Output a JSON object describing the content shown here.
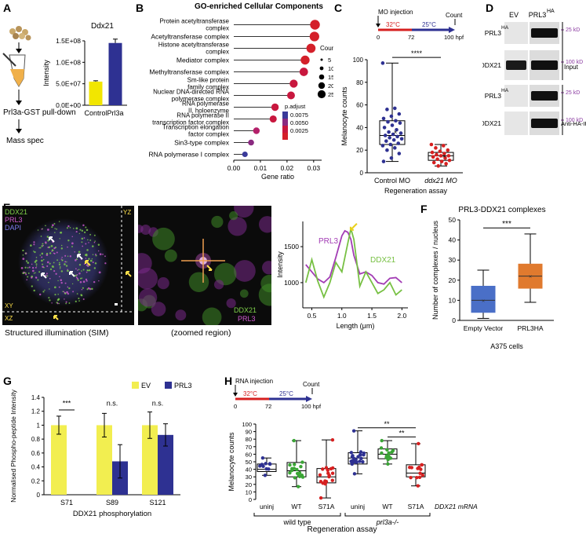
{
  "panels": {
    "A": {
      "letter": "A",
      "workflow": [
        "Prl3a-GST pull-down",
        "Mass spec"
      ],
      "chart_data": {
        "type": "bar",
        "title": "Ddx21",
        "ylabel": "Intensity",
        "categories": [
          "Control",
          "Prl3a"
        ],
        "values": [
          55000000,
          145000000
        ],
        "errors": [
          2000000,
          9000000
        ],
        "yticks": [
          "0.0E+00",
          "5.0E+07",
          "1.0E+08",
          "1.5E+08"
        ],
        "ylim": [
          0,
          150000000
        ],
        "colors": [
          "#f2e600",
          "#2e3192"
        ]
      }
    },
    "B": {
      "letter": "B",
      "chart_data": {
        "type": "scatter",
        "title": "GO-enriched Cellular Components",
        "xlabel": "Gene ratio",
        "xticks": [
          "0.00",
          "0.01",
          "0.02",
          "0.03"
        ],
        "xlim": [
          0,
          0.033
        ],
        "categories": [
          "Protein acetyltransferase complex",
          "Acetyltransferase complex",
          "Histone acetyltransferase complex",
          "Mediator complex",
          "Methyltransferase complex",
          "Sm-like protein family complex",
          "Nuclear DNA-directed RNA polymerase complex",
          "RNA polymerase II, holoenzyme",
          "RNA polymerase II transcription factor complex",
          "Transcription elongation factor complex",
          "Sin3-type complex",
          "RNA polymerase I complex"
        ],
        "x": [
          0.0305,
          0.0303,
          0.029,
          0.0268,
          0.0263,
          0.0225,
          0.0215,
          0.0155,
          0.0148,
          0.0085,
          0.0065,
          0.0042
        ],
        "count": [
          22,
          21,
          18,
          17,
          14,
          12,
          11,
          9,
          8,
          6,
          4,
          3
        ],
        "p_adjust": [
          0.0005,
          0.0005,
          0.0006,
          0.0006,
          0.0008,
          0.0009,
          0.001,
          0.0012,
          0.0014,
          0.0025,
          0.004,
          0.008
        ],
        "size_legend": {
          "title": "Count",
          "values": [
            "5",
            "10",
            "15",
            "20",
            "25"
          ]
        },
        "color_legend": {
          "title": "p.adjust",
          "values": [
            "0.0075",
            "0.0050",
            "0.0025"
          ]
        }
      }
    },
    "C": {
      "letter": "C",
      "timeline": {
        "injection": "MO injection",
        "t32": "32°C",
        "t25": "25°C",
        "count": "Count",
        "x0": "0",
        "x72": "72",
        "x100": "100 hpf"
      },
      "chart_data": {
        "type": "box",
        "ylabel": "Melanocyte counts",
        "xlabel": "Regeneration assay",
        "categories": [
          "Control MO",
          "ddx21 MO"
        ],
        "yticks": [
          "0",
          "20",
          "40",
          "60",
          "80",
          "100"
        ],
        "ylim": [
          0,
          100
        ],
        "boxes": [
          {
            "min": 10,
            "q1": 25,
            "median": 33,
            "q3": 46,
            "max": 97,
            "mean": 36,
            "color": "#2e3192"
          },
          {
            "min": 6,
            "q1": 11,
            "median": 15,
            "q3": 18,
            "max": 25,
            "mean": 15,
            "color": "#d62020"
          }
        ],
        "points": [
          [
            97,
            57,
            56,
            52,
            50,
            48,
            46,
            45,
            44,
            42,
            40,
            38,
            36,
            35,
            34,
            33,
            32,
            31,
            30,
            29,
            28,
            26,
            25,
            24,
            22,
            20,
            17,
            13,
            10
          ],
          [
            25,
            24,
            22,
            20,
            19,
            18,
            17,
            16,
            15,
            15,
            14,
            13,
            12,
            11,
            10,
            9,
            8,
            6
          ]
        ],
        "significance": "****"
      }
    },
    "D": {
      "letter": "D",
      "lanes": [
        "EV",
        "PRL3"
      ],
      "lane_sup": "HA",
      "rows": [
        "PRL3",
        "DDX21",
        "PRL3",
        "DDX21"
      ],
      "row_sup": "HA",
      "markers": [
        "25 kD",
        "100 kD",
        "25 kD",
        "100 kD"
      ],
      "groups": [
        "Input",
        "Anti-HA-IP"
      ]
    },
    "E": {
      "letter": "E",
      "sim_labels": {
        "ch1": "DDX21",
        "ch2": "PRL3",
        "ch3": "DAPI",
        "yz": "YZ",
        "xy": "XY",
        "xz": "XZ"
      },
      "sim_caption": "Structured illumination (SIM)",
      "zoom_labels": {
        "ch1": "DDX21",
        "ch2": "PRL3"
      },
      "zoom_caption": "(zoomed region)",
      "chart_data": {
        "type": "line",
        "xlabel": "Length (μm)",
        "ylabel": "Intensity",
        "xticks": [
          "0.5",
          "1.0",
          "1.5",
          "2.0"
        ],
        "yticks": [
          "1000",
          "1500"
        ],
        "xlim": [
          0.35,
          2.1
        ],
        "ylim": [
          650,
          1850
        ],
        "series": [
          {
            "name": "PRL3",
            "color": "#a23cb4",
            "x": [
              0.4,
              0.5,
              0.6,
              0.7,
              0.8,
              0.9,
              1.0,
              1.05,
              1.1,
              1.15,
              1.2,
              1.3,
              1.4,
              1.5,
              1.6,
              1.7,
              1.8,
              1.9,
              2.0
            ],
            "y": [
              1250,
              1150,
              1050,
              1000,
              1080,
              1350,
              1650,
              1720,
              1700,
              1600,
              1380,
              1120,
              1150,
              1100,
              1000,
              980,
              1060,
              1070,
              1000
            ]
          },
          {
            "name": "DDX21",
            "color": "#77c043",
            "x": [
              0.4,
              0.5,
              0.6,
              0.7,
              0.8,
              0.9,
              1.0,
              1.1,
              1.15,
              1.2,
              1.3,
              1.4,
              1.5,
              1.6,
              1.7,
              1.8,
              1.9,
              2.0
            ],
            "y": [
              1000,
              1320,
              1020,
              800,
              1000,
              1280,
              1150,
              1550,
              1750,
              1600,
              950,
              1150,
              1000,
              850,
              900,
              1000,
              830,
              900
            ]
          }
        ]
      }
    },
    "F": {
      "letter": "F",
      "chart_data": {
        "type": "box",
        "title": "PRL3-DDX21 complexes",
        "ylabel": "Number of complexes / nucleus",
        "xlabel": "A375 cells",
        "categories": [
          "Empty Vector",
          "PRL3HA"
        ],
        "yticks": [
          "0",
          "10",
          "20",
          "30",
          "40",
          "50"
        ],
        "ylim": [
          0,
          50
        ],
        "boxes": [
          {
            "min": 1,
            "q1": 4,
            "median": 10,
            "q3": 17,
            "max": 25,
            "mean": 10,
            "color": "#4a6fc7"
          },
          {
            "min": 9,
            "q1": 16,
            "median": 22,
            "q3": 28,
            "max": 43,
            "mean": 22,
            "color": "#e07a2e"
          }
        ],
        "significance": "***"
      }
    },
    "G": {
      "letter": "G",
      "chart_data": {
        "type": "bar",
        "ylabel": "Normalised Phospho-peptide Intensity",
        "xlabel": "DDX21 phosphorylation",
        "categories": [
          "S71",
          "S89",
          "S121"
        ],
        "yticks": [
          "0",
          "0.2",
          "0.4",
          "0.6",
          "0.8",
          "1",
          "1.2",
          "1.4"
        ],
        "ylim": [
          0,
          1.4
        ],
        "series": [
          {
            "name": "EV",
            "color": "#f2ee50",
            "values": [
              1.0,
              1.0,
              1.0
            ],
            "errors": [
              0.13,
              0.17,
              0.19
            ]
          },
          {
            "name": "PRL3",
            "color": "#2e3192",
            "values": [
              0.0,
              0.48,
              0.86
            ],
            "errors": [
              0.0,
              0.24,
              0.16
            ]
          }
        ],
        "significance": [
          "***",
          "n.s.",
          "n.s."
        ]
      }
    },
    "H": {
      "letter": "H",
      "timeline": {
        "injection": "RNA injection",
        "t32": "32°C",
        "t25": "25°C",
        "count": "Count",
        "x0": "0",
        "x72": "72",
        "x100": "100 hpf"
      },
      "chart_data": {
        "type": "box",
        "ylabel": "Melanocyte counts",
        "xlabel": "Regeneration assay",
        "categories": [
          "uninj",
          "WT",
          "S71A",
          "uninj",
          "WT",
          "S71A"
        ],
        "groups": [
          "wild type",
          "prl3a-/-"
        ],
        "mrna_label": "DDX21 mRNA",
        "yticks": [
          "0",
          "10",
          "20",
          "30",
          "40",
          "50",
          "60",
          "70",
          "80",
          "90",
          "100"
        ],
        "ylim": [
          0,
          100
        ],
        "boxes": [
          {
            "min": 32,
            "q1": 37,
            "median": 40,
            "q3": 47,
            "max": 55,
            "color": "#2e3192"
          },
          {
            "min": 17,
            "q1": 30,
            "median": 38,
            "q3": 49,
            "max": 78,
            "color": "#3aa535"
          },
          {
            "min": 2,
            "q1": 22,
            "median": 30,
            "q3": 41,
            "max": 79,
            "color": "#d62020"
          },
          {
            "min": 34,
            "q1": 47,
            "median": 55,
            "q3": 62,
            "max": 91,
            "color": "#2e3192"
          },
          {
            "min": 47,
            "q1": 54,
            "median": 60,
            "q3": 67,
            "max": 78,
            "color": "#3aa535"
          },
          {
            "min": 18,
            "q1": 30,
            "median": 35,
            "q3": 46,
            "max": 74,
            "color": "#d62020"
          }
        ],
        "significance": [
          "**",
          "**"
        ]
      }
    }
  }
}
